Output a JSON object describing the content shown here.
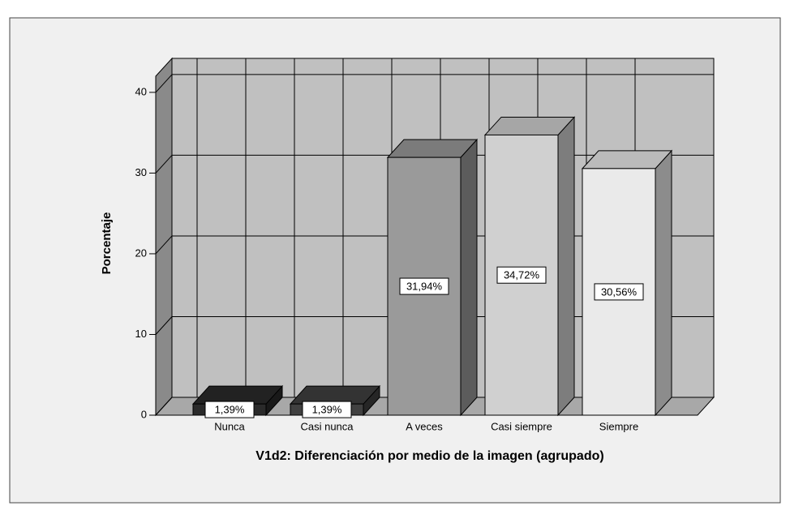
{
  "chart_data": {
    "type": "bar3d",
    "xlabel": "V1d2: Diferenciación por medio de la imagen (agrupado)",
    "ylabel": "Porcentaje",
    "categories": [
      "Nunca",
      "Casi nunca",
      "A veces",
      "Casi siempre",
      "Siempre"
    ],
    "values": [
      1.39,
      1.39,
      31.94,
      34.72,
      30.56
    ],
    "value_labels": [
      "1,39%",
      "1,39%",
      "31,94%",
      "34,72%",
      "30,56%"
    ],
    "colors": [
      "#2a2a2a",
      "#404040",
      "#9a9a9a",
      "#d0d0d0",
      "#eaeaea"
    ],
    "ylim": [
      0,
      42
    ],
    "yticks": [
      0,
      10,
      20,
      30,
      40
    ],
    "grid": true
  }
}
